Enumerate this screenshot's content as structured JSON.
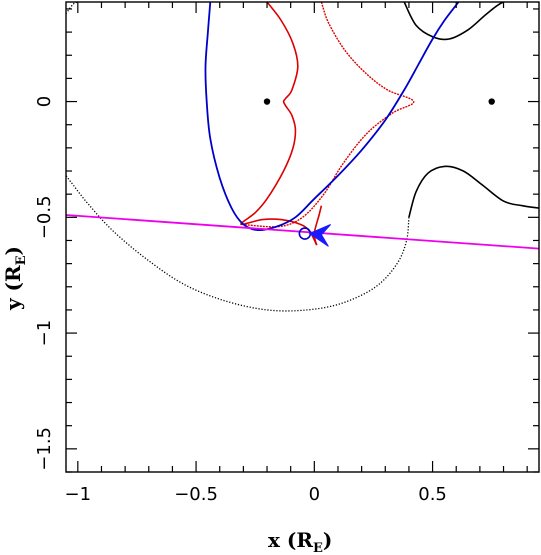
{
  "chart_data": {
    "type": "line",
    "xlabel": "x (R",
    "xlabel_sub": "E",
    "xlabel_close": ")",
    "ylabel": "y (R",
    "ylabel_sub": "E",
    "ylabel_close": ")",
    "xlim": [
      -1.05,
      0.95
    ],
    "ylim": [
      -1.6,
      0.43
    ],
    "x_ticks": [
      -1,
      -0.5,
      0,
      0.5
    ],
    "x_tick_labels": [
      "−1",
      "−0.5",
      "0",
      "0.5"
    ],
    "y_ticks": [
      0,
      -0.5,
      -1,
      -1.5
    ],
    "y_tick_labels": [
      "0",
      "−0.5",
      "−1",
      "−1.5"
    ],
    "x_minor_step": 0.1,
    "y_minor_step": 0.1,
    "grid": false,
    "colors": {
      "caustic": "#dd0000",
      "critical": "#000000",
      "image_track": "#0000cc",
      "source_track": "#ee00ee",
      "arrow": "#1a1aff"
    },
    "lenses": [
      {
        "x": -0.2,
        "y": 0.0
      },
      {
        "x": 0.75,
        "y": 0.0
      }
    ],
    "source_track": [
      [
        -1.05,
        -0.49
      ],
      [
        0.95,
        -0.635
      ]
    ],
    "source_position": {
      "x": -0.04,
      "y": -0.57
    },
    "arrow": {
      "from": [
        0.03,
        -0.575
      ],
      "to": [
        -0.02,
        -0.57
      ]
    },
    "blue_image_track": [
      [
        -0.44,
        0.43
      ],
      [
        -0.45,
        0.3
      ],
      [
        -0.46,
        0.15
      ],
      [
        -0.455,
        0.0
      ],
      [
        -0.44,
        -0.16
      ],
      [
        -0.4,
        -0.33
      ],
      [
        -0.35,
        -0.46
      ],
      [
        -0.3,
        -0.53
      ],
      [
        -0.24,
        -0.555
      ],
      [
        -0.16,
        -0.54
      ],
      [
        -0.08,
        -0.5
      ],
      [
        0.0,
        -0.42
      ],
      [
        0.1,
        -0.32
      ],
      [
        0.2,
        -0.21
      ],
      [
        0.3,
        -0.08
      ],
      [
        0.38,
        0.05
      ],
      [
        0.44,
        0.16
      ],
      [
        0.5,
        0.27
      ],
      [
        0.55,
        0.35
      ],
      [
        0.61,
        0.43
      ]
    ],
    "caustic_left": [
      [
        -0.2,
        0.43
      ],
      [
        -0.14,
        0.35
      ],
      [
        -0.09,
        0.25
      ],
      [
        -0.07,
        0.15
      ],
      [
        -0.095,
        0.05
      ],
      [
        -0.12,
        0.015
      ],
      [
        -0.13,
        0.0
      ],
      [
        -0.12,
        -0.02
      ],
      [
        -0.095,
        -0.06
      ],
      [
        -0.08,
        -0.12
      ],
      [
        -0.09,
        -0.2
      ],
      [
        -0.13,
        -0.3
      ],
      [
        -0.2,
        -0.42
      ],
      [
        -0.25,
        -0.48
      ],
      [
        -0.31,
        -0.53
      ],
      [
        -0.22,
        -0.51
      ],
      [
        -0.14,
        -0.51
      ],
      [
        -0.06,
        -0.53
      ],
      [
        -0.02,
        -0.56
      ],
      [
        0.01,
        -0.62
      ]
    ],
    "caustic_right": [
      [
        0.03,
        0.43
      ],
      [
        0.06,
        0.34
      ],
      [
        0.13,
        0.22
      ],
      [
        0.22,
        0.12
      ],
      [
        0.31,
        0.05
      ],
      [
        0.42,
        0.0
      ],
      [
        0.33,
        -0.05
      ],
      [
        0.22,
        -0.14
      ],
      [
        0.12,
        -0.27
      ],
      [
        0.04,
        -0.4
      ],
      [
        -0.05,
        -0.5
      ],
      [
        -0.15,
        -0.54
      ],
      [
        -0.31,
        -0.53
      ]
    ],
    "caustic_cusp_low": [
      [
        0.01,
        -0.62
      ],
      [
        0.0,
        -0.57
      ],
      [
        0.02,
        -0.49
      ],
      [
        0.03,
        -0.45
      ]
    ],
    "critical_upper_right": [
      [
        0.38,
        0.43
      ],
      [
        0.43,
        0.33
      ],
      [
        0.5,
        0.28
      ],
      [
        0.57,
        0.27
      ],
      [
        0.65,
        0.31
      ],
      [
        0.73,
        0.38
      ],
      [
        0.8,
        0.43
      ],
      [
        0.88,
        0.44
      ],
      [
        0.95,
        0.43
      ]
    ],
    "critical_lower_right": [
      [
        0.95,
        -0.46
      ],
      [
        0.88,
        -0.45
      ],
      [
        0.8,
        -0.43
      ],
      [
        0.71,
        -0.36
      ],
      [
        0.63,
        -0.3
      ],
      [
        0.55,
        -0.28
      ],
      [
        0.48,
        -0.31
      ],
      [
        0.43,
        -0.39
      ],
      [
        0.4,
        -0.5
      ],
      [
        0.39,
        -0.6
      ],
      [
        0.35,
        -0.7
      ],
      [
        0.26,
        -0.8
      ],
      [
        0.12,
        -0.87
      ],
      [
        -0.03,
        -0.9
      ],
      [
        -0.2,
        -0.9
      ],
      [
        -0.38,
        -0.86
      ],
      [
        -0.55,
        -0.79
      ],
      [
        -0.71,
        -0.68
      ],
      [
        -0.85,
        -0.56
      ],
      [
        -0.95,
        -0.45
      ],
      [
        -1.02,
        -0.36
      ],
      [
        -1.05,
        -0.32
      ]
    ],
    "critical_upper_left": [
      [
        -1.05,
        0.38
      ],
      [
        -1.02,
        0.42
      ],
      [
        -1.0,
        0.43
      ]
    ]
  }
}
